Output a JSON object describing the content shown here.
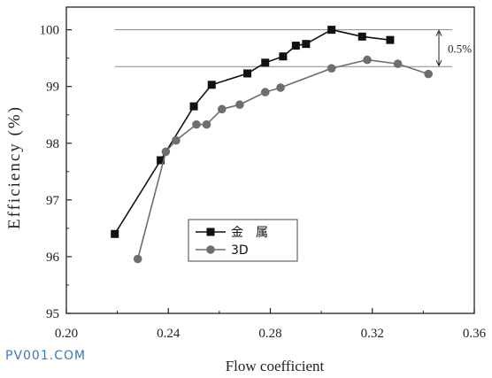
{
  "chart_data": {
    "type": "line",
    "xlabel": "Flow coefficient",
    "ylabel": "Efficiency (%)",
    "xlim": [
      0.2,
      0.36
    ],
    "ylim": [
      95,
      100.4
    ],
    "x_ticks": [
      0.2,
      0.24,
      0.28,
      0.32,
      0.36
    ],
    "x_tick_labels": [
      "0.20",
      "0.24",
      "0.28",
      "0.32",
      "0.36"
    ],
    "y_ticks": [
      95,
      96,
      97,
      98,
      99,
      100
    ],
    "y_tick_labels": [
      "95",
      "96",
      "97",
      "98",
      "99",
      "100"
    ],
    "grid": false,
    "legend_position": "lower-center",
    "annotation": {
      "text": "0.5%",
      "upper_ref": 100.0,
      "lower_ref": 99.35
    },
    "series": [
      {
        "name": "金　属",
        "marker": "square",
        "color": "#111111",
        "x": [
          0.219,
          0.237,
          0.25,
          0.257,
          0.271,
          0.278,
          0.285,
          0.29,
          0.294,
          0.304,
          0.316,
          0.327
        ],
        "y": [
          96.4,
          97.7,
          98.65,
          99.03,
          99.23,
          99.42,
          99.53,
          99.72,
          99.75,
          100.0,
          99.88,
          99.82
        ]
      },
      {
        "name": "3D",
        "marker": "circle",
        "color": "#6e6e6e",
        "x": [
          0.228,
          0.239,
          0.243,
          0.251,
          0.255,
          0.261,
          0.268,
          0.278,
          0.284,
          0.304,
          0.318,
          0.33,
          0.342
        ],
        "y": [
          95.96,
          97.85,
          98.05,
          98.33,
          98.33,
          98.6,
          98.68,
          98.9,
          98.98,
          99.32,
          99.47,
          99.4,
          99.22
        ]
      }
    ]
  },
  "watermark": "PV001.COM"
}
